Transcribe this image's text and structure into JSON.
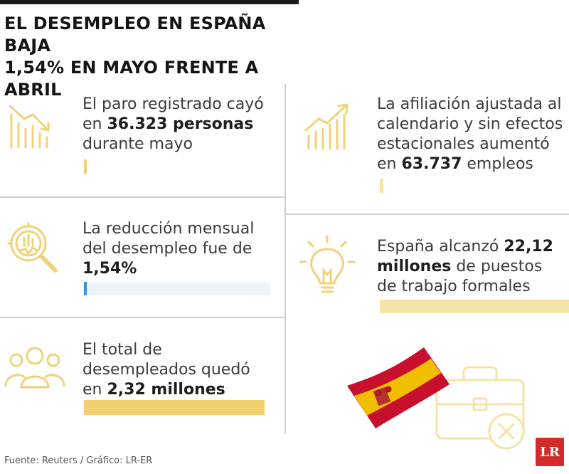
{
  "header": {
    "title_line1": "EL DESEMPLEO EN ESPAÑA BAJA",
    "title_line2": "1,54% EN MAYO FRENTE A ABRIL"
  },
  "stats": [
    {
      "icon": "trend-down-chart-icon",
      "lines": [
        {
          "pre": "El paro registrado cayó",
          "bold": "",
          "post": ""
        },
        {
          "pre": "en ",
          "bold": "36.323 personas",
          "post": ""
        },
        {
          "pre": "durante mayo",
          "bold": "",
          "post": ""
        }
      ]
    },
    {
      "icon": "trend-up-chart-icon",
      "lines": [
        {
          "pre": "La afiliación ajustada al",
          "bold": "",
          "post": ""
        },
        {
          "pre": "calendario y sin efectos",
          "bold": "",
          "post": ""
        },
        {
          "pre": "estacionales aumentó",
          "bold": "",
          "post": ""
        },
        {
          "pre": "en ",
          "bold": "63.737",
          "post": " empleos"
        }
      ]
    },
    {
      "icon": "magnifier-chart-icon",
      "lines": [
        {
          "pre": "La reducción mensual",
          "bold": "",
          "post": ""
        },
        {
          "pre": "del desempleo fue de",
          "bold": "",
          "post": ""
        },
        {
          "pre": "",
          "bold": "1,54%",
          "post": ""
        }
      ]
    },
    {
      "icon": "lightbulb-icon",
      "lines": [
        {
          "pre": "España alcanzó ",
          "bold": "22,12",
          "post": ""
        },
        {
          "pre": "",
          "bold": "millones",
          "post": " de puestos"
        },
        {
          "pre": "de trabajo formales",
          "bold": "",
          "post": ""
        }
      ]
    },
    {
      "icon": "people-group-icon",
      "lines": [
        {
          "pre": "El total de",
          "bold": "",
          "post": ""
        },
        {
          "pre": "desempleados quedó",
          "bold": "",
          "post": ""
        },
        {
          "pre": "en ",
          "bold": "2,32 millones",
          "post": ""
        }
      ]
    }
  ],
  "illustration": {
    "flag_icon": "spain-flag-icon",
    "briefcase_icon": "briefcase-x-icon"
  },
  "footer": {
    "source": "Fuente: Reuters / Gráfico: LR-ER",
    "logo": "LR"
  },
  "colors": {
    "accent_yellow": "#f2cf6f",
    "icon_yellow": "#f0d27a",
    "accent_blue": "#3d8fe0",
    "flag_red": "#c8102e",
    "flag_yellow": "#f1bf00"
  }
}
